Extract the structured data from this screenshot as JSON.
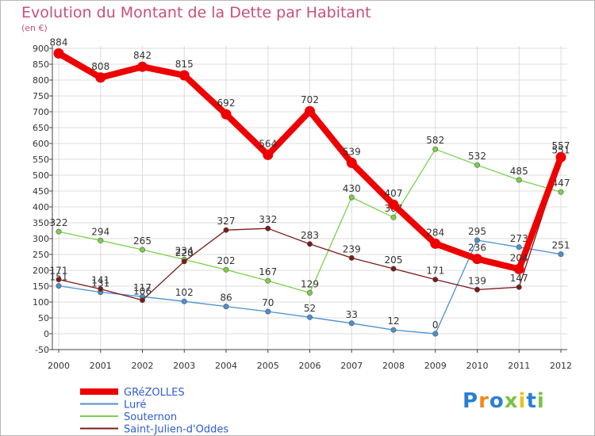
{
  "chart_data": {
    "type": "line",
    "title": "Evolution du Montant de la Dette par Habitant",
    "subtitle": "(en €)",
    "x": [
      "2000",
      "2001",
      "2002",
      "2003",
      "2004",
      "2005",
      "2006",
      "2007",
      "2008",
      "2009",
      "2010",
      "2011",
      "2012"
    ],
    "ylim": [
      -50,
      900
    ],
    "yticks": [
      -50,
      0,
      50,
      100,
      150,
      200,
      250,
      300,
      350,
      400,
      450,
      500,
      550,
      600,
      650,
      700,
      750,
      800,
      850,
      900
    ],
    "grid": true,
    "legend_position": "bottom-left",
    "series": [
      {
        "name": "GRéZOLLES",
        "color": "#ee0000",
        "values": [
          884,
          808,
          842,
          815,
          692,
          564,
          702,
          539,
          407,
          284,
          236,
          204,
          557
        ]
      },
      {
        "name": "Luré",
        "color": "#4a90d0",
        "values": [
          151,
          131,
          117,
          102,
          86,
          70,
          52,
          33,
          12,
          0,
          295,
          273,
          251
        ]
      },
      {
        "name": "Souternon",
        "color": "#7cd04a",
        "values": [
          322,
          294,
          265,
          234,
          202,
          167,
          129,
          430,
          367,
          582,
          532,
          485,
          447
        ]
      },
      {
        "name": "Saint-Julien-d'Oddes",
        "color": "#7a1a1a",
        "values": [
          171,
          141,
          106,
          228,
          327,
          332,
          283,
          239,
          205,
          171,
          139,
          147,
          551
        ]
      }
    ]
  },
  "brand": {
    "text": "Proxiti",
    "colors": [
      "#2a7fd4",
      "#f08a1c",
      "#2a7fd4",
      "#7cc242",
      "#e8c21c",
      "#2a7fd4",
      "#7cc242"
    ]
  }
}
